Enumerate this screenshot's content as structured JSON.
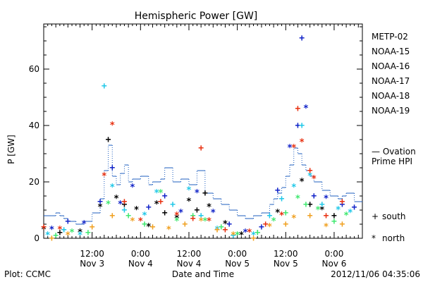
{
  "chart_data": {
    "type": "scatter",
    "title": "Hemispheric Power [GW]",
    "xlabel": "Date and Time",
    "ylabel": "P [GW]",
    "xlim": [
      "2012-11-03 00:00",
      "2012-11-06 07:00"
    ],
    "ylim": [
      0,
      76
    ],
    "x_tick_labels": [
      {
        "time": "2012-11-03 12:00",
        "line1": "12:00",
        "line2": "Nov 3"
      },
      {
        "time": "2012-11-04 00:00",
        "line1": "0:00",
        "line2": "Nov 4"
      },
      {
        "time": "2012-11-04 12:00",
        "line1": "12:00",
        "line2": "Nov 4"
      },
      {
        "time": "2012-11-05 00:00",
        "line1": "0:00",
        "line2": "Nov 5"
      },
      {
        "time": "2012-11-05 12:00",
        "line1": "12:00",
        "line2": "Nov 5"
      },
      {
        "time": "2012-11-06 00:00",
        "line1": "0:00",
        "line2": "Nov 6"
      }
    ],
    "y_ticks": [
      0,
      20,
      40,
      60
    ],
    "legend_placement": "right",
    "symbol_legend": [
      {
        "symbol": "+",
        "label": "south"
      },
      {
        "symbol": "*",
        "label": "north"
      }
    ],
    "ovation_label_line1": "— Ovation",
    "ovation_label_line2": "Prime HPI",
    "ovation_color": "#1f5fbf",
    "ovation": [
      [
        "2012-11-03 00:00",
        8
      ],
      [
        "2012-11-03 02:00",
        8
      ],
      [
        "2012-11-03 03:00",
        9
      ],
      [
        "2012-11-03 04:00",
        8
      ],
      [
        "2012-11-03 05:00",
        7
      ],
      [
        "2012-11-03 06:00",
        6
      ],
      [
        "2012-11-03 08:00",
        5
      ],
      [
        "2012-11-03 10:00",
        6
      ],
      [
        "2012-11-03 12:00",
        9
      ],
      [
        "2012-11-03 14:00",
        14
      ],
      [
        "2012-11-03 15:00",
        24
      ],
      [
        "2012-11-03 16:00",
        33
      ],
      [
        "2012-11-03 17:00",
        22
      ],
      [
        "2012-11-03 18:00",
        19
      ],
      [
        "2012-11-03 19:00",
        23
      ],
      [
        "2012-11-03 20:00",
        26
      ],
      [
        "2012-11-03 21:00",
        20
      ],
      [
        "2012-11-03 22:00",
        21
      ],
      [
        "2012-11-04 00:00",
        22
      ],
      [
        "2012-11-04 02:00",
        19
      ],
      [
        "2012-11-04 03:00",
        20
      ],
      [
        "2012-11-04 05:00",
        21
      ],
      [
        "2012-11-04 06:00",
        25
      ],
      [
        "2012-11-04 08:00",
        20
      ],
      [
        "2012-11-04 10:00",
        21
      ],
      [
        "2012-11-04 12:00",
        19
      ],
      [
        "2012-11-04 14:00",
        24
      ],
      [
        "2012-11-04 16:00",
        16
      ],
      [
        "2012-11-04 18:00",
        14
      ],
      [
        "2012-11-04 20:00",
        12
      ],
      [
        "2012-11-04 22:00",
        10
      ],
      [
        "2012-11-05 00:00",
        8
      ],
      [
        "2012-11-05 02:00",
        7
      ],
      [
        "2012-11-05 04:00",
        8
      ],
      [
        "2012-11-05 06:00",
        9
      ],
      [
        "2012-11-05 08:00",
        12
      ],
      [
        "2012-11-05 09:00",
        14
      ],
      [
        "2012-11-05 10:00",
        16
      ],
      [
        "2012-11-05 11:00",
        18
      ],
      [
        "2012-11-05 12:00",
        22
      ],
      [
        "2012-11-05 13:00",
        26
      ],
      [
        "2012-11-05 14:00",
        32
      ],
      [
        "2012-11-05 15:00",
        30
      ],
      [
        "2012-11-05 16:00",
        26
      ],
      [
        "2012-11-05 17:00",
        24
      ],
      [
        "2012-11-05 18:00",
        22
      ],
      [
        "2012-11-05 19:00",
        20
      ],
      [
        "2012-11-05 21:00",
        17
      ],
      [
        "2012-11-05 23:00",
        15
      ],
      [
        "2012-11-06 01:00",
        14
      ],
      [
        "2012-11-06 02:00",
        15
      ],
      [
        "2012-11-06 03:00",
        16
      ],
      [
        "2012-11-06 05:00",
        13
      ],
      [
        "2012-11-06 07:00",
        13
      ]
    ],
    "series": [
      {
        "name": "METP-02",
        "color": "#000000",
        "points": [
          [
            "2012-11-03 00:00",
            3,
            "*"
          ],
          [
            "2012-11-03 04:00",
            2,
            "+"
          ],
          [
            "2012-11-03 09:00",
            2,
            "*"
          ],
          [
            "2012-11-03 14:00",
            11,
            "*"
          ],
          [
            "2012-11-03 16:00",
            35,
            "+"
          ],
          [
            "2012-11-03 18:00",
            14,
            "*"
          ],
          [
            "2012-11-03 20:00",
            12,
            "+"
          ],
          [
            "2012-11-03 23:00",
            10,
            "*"
          ],
          [
            "2012-11-04 02:00",
            4,
            "*"
          ],
          [
            "2012-11-04 04:00",
            12,
            "*"
          ],
          [
            "2012-11-04 06:00",
            9,
            "+"
          ],
          [
            "2012-11-04 09:00",
            7,
            "*"
          ],
          [
            "2012-11-04 12:00",
            13,
            "*"
          ],
          [
            "2012-11-04 14:00",
            10,
            "+"
          ],
          [
            "2012-11-04 16:00",
            16,
            "+"
          ],
          [
            "2012-11-04 17:00",
            11,
            "*"
          ],
          [
            "2012-11-04 21:00",
            5,
            "*"
          ],
          [
            "2012-11-05 01:00",
            1,
            "*"
          ],
          [
            "2012-11-05 05:00",
            2,
            "+"
          ],
          [
            "2012-11-05 10:00",
            9,
            "*"
          ],
          [
            "2012-11-05 16:00",
            20,
            "*"
          ],
          [
            "2012-11-05 18:00",
            12,
            "+"
          ],
          [
            "2012-11-05 21:00",
            10,
            "*"
          ],
          [
            "2012-11-06 00:00",
            8,
            "+"
          ]
        ]
      },
      {
        "name": "NOAA-15",
        "color": "#1022c8",
        "points": [
          [
            "2012-11-03 02:00",
            3,
            "*"
          ],
          [
            "2012-11-03 06:00",
            6,
            "+"
          ],
          [
            "2012-11-03 10:00",
            5,
            "*"
          ],
          [
            "2012-11-03 14:00",
            13,
            "+"
          ],
          [
            "2012-11-03 17:00",
            25,
            "+"
          ],
          [
            "2012-11-03 19:00",
            12,
            "*"
          ],
          [
            "2012-11-03 22:00",
            18,
            "*"
          ],
          [
            "2012-11-04 02:00",
            11,
            "+"
          ],
          [
            "2012-11-04 06:00",
            15,
            "+"
          ],
          [
            "2012-11-04 10:00",
            9,
            "*"
          ],
          [
            "2012-11-04 14:00",
            16,
            "*"
          ],
          [
            "2012-11-04 18:00",
            9,
            "*"
          ],
          [
            "2012-11-04 22:00",
            5,
            "+"
          ],
          [
            "2012-11-05 02:00",
            2,
            "*"
          ],
          [
            "2012-11-05 06:00",
            4,
            "+"
          ],
          [
            "2012-11-05 10:00",
            17,
            "+"
          ],
          [
            "2012-11-05 13:00",
            32,
            "*"
          ],
          [
            "2012-11-05 15:00",
            40,
            "+"
          ],
          [
            "2012-11-05 16:00",
            71,
            "+"
          ],
          [
            "2012-11-05 17:00",
            46,
            "*"
          ],
          [
            "2012-11-05 19:00",
            15,
            "+"
          ],
          [
            "2012-11-05 22:00",
            14,
            "*"
          ],
          [
            "2012-11-06 02:00",
            12,
            "+"
          ],
          [
            "2012-11-06 05:00",
            11,
            "+"
          ]
        ]
      },
      {
        "name": "NOAA-16",
        "color": "#20c8e8",
        "points": [
          [
            "2012-11-03 01:00",
            1,
            "*"
          ],
          [
            "2012-11-03 05:00",
            3,
            "+"
          ],
          [
            "2012-11-03 09:00",
            1,
            "*"
          ],
          [
            "2012-11-03 15:00",
            54,
            "+"
          ],
          [
            "2012-11-03 17:00",
            18,
            "*"
          ],
          [
            "2012-11-03 20:00",
            10,
            "+"
          ],
          [
            "2012-11-04 01:00",
            8,
            "*"
          ],
          [
            "2012-11-04 04:00",
            16,
            "*"
          ],
          [
            "2012-11-04 08:00",
            12,
            "+"
          ],
          [
            "2012-11-04 12:00",
            17,
            "*"
          ],
          [
            "2012-11-04 15:00",
            8,
            "+"
          ],
          [
            "2012-11-04 19:00",
            3,
            "*"
          ],
          [
            "2012-11-04 23:00",
            1,
            "+"
          ],
          [
            "2012-11-05 04:00",
            1,
            "*"
          ],
          [
            "2012-11-05 08:00",
            8,
            "+"
          ],
          [
            "2012-11-05 11:00",
            14,
            "+"
          ],
          [
            "2012-11-05 14:00",
            18,
            "*"
          ],
          [
            "2012-11-05 16:00",
            40,
            "+"
          ],
          [
            "2012-11-05 18:00",
            22,
            "*"
          ],
          [
            "2012-11-05 21:00",
            12,
            "+"
          ],
          [
            "2012-11-06 01:00",
            10,
            "*"
          ],
          [
            "2012-11-06 04:00",
            9,
            "*"
          ]
        ]
      },
      {
        "name": "NOAA-17",
        "color": "#40e870",
        "points": [
          [
            "2012-11-03 03:00",
            1,
            "+"
          ],
          [
            "2012-11-03 07:00",
            2,
            "*"
          ],
          [
            "2012-11-03 11:00",
            2,
            "+"
          ],
          [
            "2012-11-03 16:00",
            12,
            "*"
          ],
          [
            "2012-11-03 21:00",
            8,
            "+"
          ],
          [
            "2012-11-04 01:00",
            5,
            "+"
          ],
          [
            "2012-11-04 05:00",
            16,
            "*"
          ],
          [
            "2012-11-04 09:00",
            6,
            "*"
          ],
          [
            "2012-11-04 13:00",
            8,
            "+"
          ],
          [
            "2012-11-04 16:00",
            6,
            "*"
          ],
          [
            "2012-11-04 20:00",
            4,
            "+"
          ],
          [
            "2012-11-05 00:00",
            1,
            "*"
          ],
          [
            "2012-11-05 05:00",
            2,
            "+"
          ],
          [
            "2012-11-05 09:00",
            6,
            "*"
          ],
          [
            "2012-11-05 12:00",
            9,
            "+"
          ],
          [
            "2012-11-05 15:00",
            14,
            "*"
          ],
          [
            "2012-11-05 17:00",
            12,
            "+"
          ],
          [
            "2012-11-05 20:00",
            10,
            "*"
          ],
          [
            "2012-11-06 00:00",
            6,
            "+"
          ],
          [
            "2012-11-06 03:00",
            8,
            "*"
          ]
        ]
      },
      {
        "name": "NOAA-18",
        "color": "#f0a020",
        "points": [
          [
            "2012-11-03 02:00",
            0,
            "+"
          ],
          [
            "2012-11-03 06:00",
            1,
            "*"
          ],
          [
            "2012-11-03 12:00",
            4,
            "+"
          ],
          [
            "2012-11-03 17:00",
            8,
            "+"
          ],
          [
            "2012-11-03 22:00",
            6,
            "*"
          ],
          [
            "2012-11-04 03:00",
            4,
            "+"
          ],
          [
            "2012-11-04 07:00",
            3,
            "*"
          ],
          [
            "2012-11-04 11:00",
            5,
            "+"
          ],
          [
            "2012-11-04 15:00",
            6,
            "*"
          ],
          [
            "2012-11-04 19:00",
            3,
            "+"
          ],
          [
            "2012-11-04 23:00",
            1,
            "*"
          ],
          [
            "2012-11-05 04:00",
            0,
            "+"
          ],
          [
            "2012-11-05 08:00",
            4,
            "*"
          ],
          [
            "2012-11-05 12:00",
            5,
            "+"
          ],
          [
            "2012-11-05 14:00",
            7,
            "*"
          ],
          [
            "2012-11-05 18:00",
            8,
            "+"
          ],
          [
            "2012-11-05 22:00",
            4,
            "*"
          ],
          [
            "2012-11-06 02:00",
            5,
            "+"
          ]
        ]
      },
      {
        "name": "NOAA-19",
        "color": "#e83010",
        "points": [
          [
            "2012-11-03 00:00",
            4,
            "+"
          ],
          [
            "2012-11-03 04:00",
            3,
            "*"
          ],
          [
            "2012-11-03 15:00",
            22,
            "*"
          ],
          [
            "2012-11-03 17:00",
            40,
            "*"
          ],
          [
            "2012-11-03 20:00",
            13,
            "+"
          ],
          [
            "2012-11-04 00:00",
            6,
            "*"
          ],
          [
            "2012-11-04 05:00",
            13,
            "+"
          ],
          [
            "2012-11-04 09:00",
            8,
            "*"
          ],
          [
            "2012-11-04 13:00",
            7,
            "+"
          ],
          [
            "2012-11-04 15:00",
            32,
            "+"
          ],
          [
            "2012-11-04 17:00",
            6,
            "*"
          ],
          [
            "2012-11-04 21:00",
            3,
            "+"
          ],
          [
            "2012-11-05 03:00",
            2,
            "*"
          ],
          [
            "2012-11-05 07:00",
            5,
            "+"
          ],
          [
            "2012-11-05 11:00",
            8,
            "*"
          ],
          [
            "2012-11-05 14:00",
            32,
            "*"
          ],
          [
            "2012-11-05 15:00",
            46,
            "+"
          ],
          [
            "2012-11-05 16:00",
            34,
            "*"
          ],
          [
            "2012-11-05 18:00",
            24,
            "+"
          ],
          [
            "2012-11-05 19:00",
            21,
            "*"
          ],
          [
            "2012-11-05 22:00",
            8,
            "+"
          ],
          [
            "2012-11-06 02:00",
            13,
            "+"
          ]
        ]
      }
    ]
  },
  "footer": {
    "left": "Plot: CCMC",
    "right": "2012/11/06 04:35:06"
  }
}
